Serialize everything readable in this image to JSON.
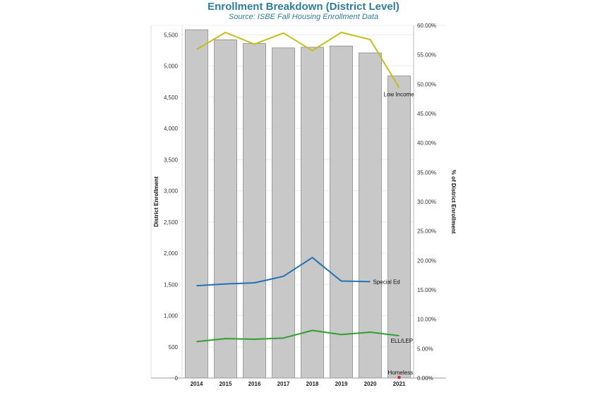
{
  "chart_data": {
    "type": "bar",
    "title": "Enrollment Breakdown (District Level)",
    "subtitle": "Source: ISBE Fall Housing Enrollment Data",
    "categories": [
      "2014",
      "2015",
      "2016",
      "2017",
      "2018",
      "2019",
      "2020",
      "2021"
    ],
    "ylabel": "District Enrollment",
    "y2label": "% of District Enrollment",
    "ylim": [
      0,
      5650
    ],
    "y2lim": [
      0,
      0.6
    ],
    "y_ticks": [
      "0",
      "500",
      "1,000",
      "1,500",
      "2,000",
      "2,500",
      "3,000",
      "3,500",
      "4,000",
      "4,500",
      "5,000",
      "5,500"
    ],
    "y_tick_values": [
      0,
      500,
      1000,
      1500,
      2000,
      2500,
      3000,
      3500,
      4000,
      4500,
      5000,
      5500
    ],
    "y2_ticks": [
      "0.00%",
      "5.00%",
      "10.00%",
      "15.00%",
      "20.00%",
      "25.00%",
      "30.00%",
      "35.00%",
      "40.00%",
      "45.00%",
      "50.00%",
      "55.00%",
      "60.00%"
    ],
    "y2_tick_values": [
      0,
      0.05,
      0.1,
      0.15,
      0.2,
      0.25,
      0.3,
      0.35,
      0.4,
      0.45,
      0.5,
      0.55,
      0.6
    ],
    "bars": {
      "name": "District Enrollment",
      "values": [
        5580,
        5420,
        5360,
        5290,
        5300,
        5320,
        5210,
        4840
      ],
      "color": "#c8c8c8"
    },
    "series": [
      {
        "name": "Low Income",
        "axis": "right",
        "color": "#c2bf1c",
        "values": [
          0.559,
          0.588,
          0.568,
          0.587,
          0.557,
          0.588,
          0.576,
          0.494
        ]
      },
      {
        "name": "Special Ed",
        "axis": "right",
        "color": "#2471b3",
        "values": [
          0.157,
          0.16,
          0.162,
          0.173,
          0.205,
          0.165,
          0.164,
          null
        ]
      },
      {
        "name": "ELL/LEP",
        "axis": "right",
        "color": "#2fa02f",
        "values": [
          0.062,
          0.067,
          0.066,
          0.068,
          0.081,
          0.074,
          0.078,
          0.072
        ]
      },
      {
        "name": "Homeless",
        "axis": "right",
        "color": "#d62728",
        "values": [
          null,
          null,
          null,
          null,
          null,
          null,
          null,
          0.001
        ]
      }
    ]
  }
}
